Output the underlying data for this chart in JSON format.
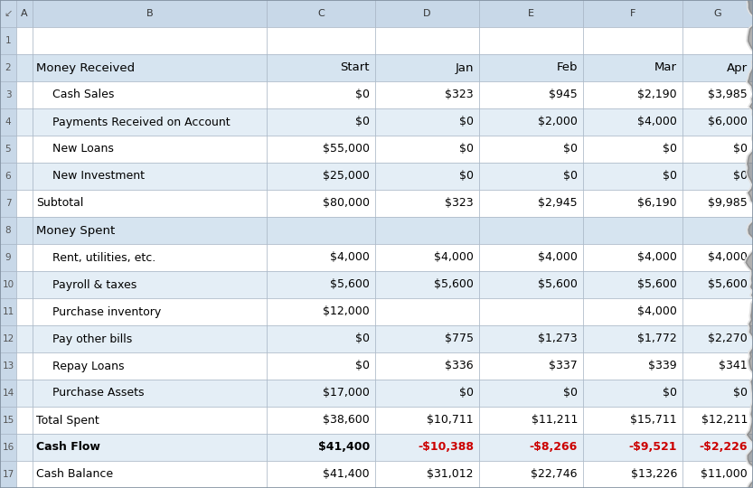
{
  "col_headers": [
    "",
    "A",
    "B",
    "C",
    "D",
    "E",
    "F",
    "G"
  ],
  "rows": [
    {
      "row": 1,
      "label": "",
      "indent": false,
      "bold": false,
      "values": [
        "",
        "",
        "",
        "",
        ""
      ],
      "is_header": false,
      "is_section": false,
      "red_cols": []
    },
    {
      "row": 2,
      "label": "Money Received",
      "indent": false,
      "bold": false,
      "values": [
        "Start",
        "Jan",
        "Feb",
        "Mar",
        "Apr"
      ],
      "is_header": true,
      "is_section": false,
      "red_cols": []
    },
    {
      "row": 3,
      "label": "Cash Sales",
      "indent": true,
      "bold": false,
      "values": [
        "$0",
        "$323",
        "$945",
        "$2,190",
        "$3,985"
      ],
      "is_header": false,
      "is_section": false,
      "red_cols": []
    },
    {
      "row": 4,
      "label": "Payments Received on Account",
      "indent": true,
      "bold": false,
      "values": [
        "$0",
        "$0",
        "$2,000",
        "$4,000",
        "$6,000"
      ],
      "is_header": false,
      "is_section": false,
      "red_cols": []
    },
    {
      "row": 5,
      "label": "New Loans",
      "indent": true,
      "bold": false,
      "values": [
        "$55,000",
        "$0",
        "$0",
        "$0",
        "$0"
      ],
      "is_header": false,
      "is_section": false,
      "red_cols": []
    },
    {
      "row": 6,
      "label": "New Investment",
      "indent": true,
      "bold": false,
      "values": [
        "$25,000",
        "$0",
        "$0",
        "$0",
        "$0"
      ],
      "is_header": false,
      "is_section": false,
      "red_cols": []
    },
    {
      "row": 7,
      "label": "Subtotal",
      "indent": false,
      "bold": false,
      "values": [
        "$80,000",
        "$323",
        "$2,945",
        "$6,190",
        "$9,985"
      ],
      "is_header": false,
      "is_section": false,
      "red_cols": []
    },
    {
      "row": 8,
      "label": "Money Spent",
      "indent": false,
      "bold": false,
      "values": [
        "",
        "",
        "",
        "",
        ""
      ],
      "is_header": true,
      "is_section": false,
      "red_cols": []
    },
    {
      "row": 9,
      "label": "Rent, utilities, etc.",
      "indent": true,
      "bold": false,
      "values": [
        "$4,000",
        "$4,000",
        "$4,000",
        "$4,000",
        "$4,000"
      ],
      "is_header": false,
      "is_section": false,
      "red_cols": []
    },
    {
      "row": 10,
      "label": "Payroll & taxes",
      "indent": true,
      "bold": false,
      "values": [
        "$5,600",
        "$5,600",
        "$5,600",
        "$5,600",
        "$5,600"
      ],
      "is_header": false,
      "is_section": false,
      "red_cols": []
    },
    {
      "row": 11,
      "label": "Purchase inventory",
      "indent": true,
      "bold": false,
      "values": [
        "$12,000",
        "",
        "",
        "$4,000",
        ""
      ],
      "is_header": false,
      "is_section": false,
      "red_cols": []
    },
    {
      "row": 12,
      "label": "Pay other bills",
      "indent": true,
      "bold": false,
      "values": [
        "$0",
        "$775",
        "$1,273",
        "$1,772",
        "$2,270"
      ],
      "is_header": false,
      "is_section": false,
      "red_cols": []
    },
    {
      "row": 13,
      "label": "Repay Loans",
      "indent": true,
      "bold": false,
      "values": [
        "$0",
        "$336",
        "$337",
        "$339",
        "$341"
      ],
      "is_header": false,
      "is_section": false,
      "red_cols": []
    },
    {
      "row": 14,
      "label": "Purchase Assets",
      "indent": true,
      "bold": false,
      "values": [
        "$17,000",
        "$0",
        "$0",
        "$0",
        "$0"
      ],
      "is_header": false,
      "is_section": false,
      "red_cols": []
    },
    {
      "row": 15,
      "label": "Total Spent",
      "indent": false,
      "bold": false,
      "values": [
        "$38,600",
        "$10,711",
        "$11,211",
        "$15,711",
        "$12,211"
      ],
      "is_header": false,
      "is_section": false,
      "red_cols": []
    },
    {
      "row": 16,
      "label": "Cash Flow",
      "indent": false,
      "bold": true,
      "values": [
        "$41,400",
        "-$10,388",
        "-$8,266",
        "-$9,521",
        "-$2,226"
      ],
      "is_header": false,
      "is_section": false,
      "red_cols": [
        1,
        2,
        3,
        4
      ]
    },
    {
      "row": 17,
      "label": "Cash Balance",
      "indent": false,
      "bold": false,
      "values": [
        "$41,400",
        "$31,012",
        "$22,746",
        "$13,226",
        "$11,000"
      ],
      "is_header": false,
      "is_section": false,
      "red_cols": []
    }
  ],
  "bg_white": "#ffffff",
  "bg_light_blue": "#e4eef6",
  "bg_header": "#d6e4f0",
  "bg_col_header": "#c8d8e8",
  "bg_row_num": "#c8d8e8",
  "grid_color": "#a0afc0",
  "font_color": "#000000",
  "red_color": "#cc0000",
  "figure_width": 8.33,
  "figure_height": 5.4,
  "dpi": 100
}
